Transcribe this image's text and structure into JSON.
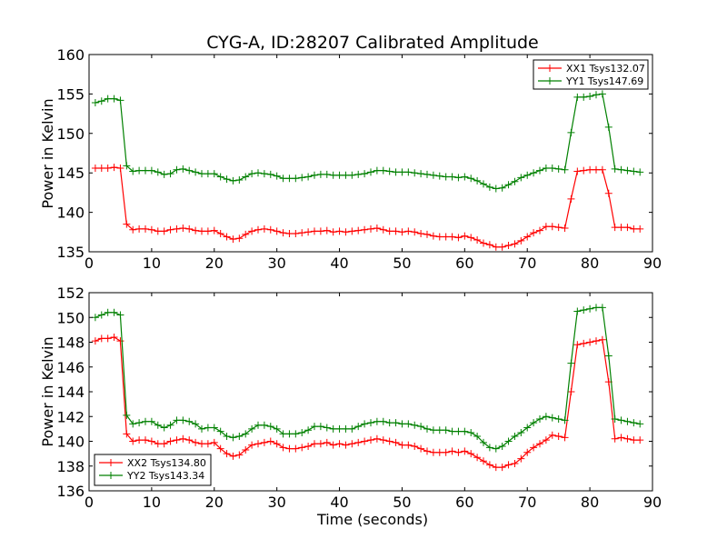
{
  "chart_data": [
    {
      "type": "line",
      "title": "CYG-A, ID:28207 Calibrated Amplitude",
      "xlabel": "",
      "ylabel": "Power in Kelvin",
      "xlim": [
        0,
        90
      ],
      "ylim": [
        135,
        160
      ],
      "xticks": [
        0,
        10,
        20,
        30,
        40,
        50,
        60,
        70,
        80,
        90
      ],
      "yticks": [
        135,
        140,
        145,
        150,
        155,
        160
      ],
      "grid": false,
      "legend_position": "upper-right",
      "x": [
        1,
        2,
        3,
        4,
        5,
        6,
        7,
        8,
        9,
        10,
        11,
        12,
        13,
        14,
        15,
        16,
        17,
        18,
        19,
        20,
        21,
        22,
        23,
        24,
        25,
        26,
        27,
        28,
        29,
        30,
        31,
        32,
        33,
        34,
        35,
        36,
        37,
        38,
        39,
        40,
        41,
        42,
        43,
        44,
        45,
        46,
        47,
        48,
        49,
        50,
        51,
        52,
        53,
        54,
        55,
        56,
        57,
        58,
        59,
        60,
        61,
        62,
        63,
        64,
        65,
        66,
        67,
        68,
        69,
        70,
        71,
        72,
        73,
        74,
        75,
        76,
        77,
        78,
        79,
        80,
        81,
        82,
        83,
        84,
        85,
        86,
        87,
        88
      ],
      "series": [
        {
          "name": "XX1 Tsys132.07",
          "color": "#ff0000",
          "marker": "plus",
          "values": [
            145.6,
            145.6,
            145.6,
            145.7,
            145.6,
            138.5,
            137.8,
            137.9,
            137.9,
            137.8,
            137.6,
            137.6,
            137.8,
            137.9,
            138.0,
            137.9,
            137.7,
            137.6,
            137.6,
            137.7,
            137.3,
            136.9,
            136.6,
            136.7,
            137.2,
            137.6,
            137.8,
            137.9,
            137.8,
            137.6,
            137.4,
            137.3,
            137.3,
            137.4,
            137.5,
            137.6,
            137.6,
            137.7,
            137.5,
            137.6,
            137.5,
            137.6,
            137.7,
            137.8,
            137.9,
            138.0,
            137.8,
            137.6,
            137.6,
            137.5,
            137.6,
            137.5,
            137.3,
            137.2,
            137.0,
            136.9,
            136.9,
            136.9,
            136.8,
            137.0,
            136.8,
            136.5,
            136.1,
            135.9,
            135.6,
            135.6,
            135.8,
            136.0,
            136.4,
            136.9,
            137.4,
            137.7,
            138.2,
            138.2,
            138.1,
            138.0,
            141.7,
            145.2,
            145.3,
            145.4,
            145.4,
            145.4,
            142.4,
            138.1,
            138.1,
            138.1,
            137.9,
            137.9
          ]
        },
        {
          "name": "YY1 Tsys147.69",
          "color": "#008000",
          "marker": "plus",
          "values": [
            153.9,
            154.1,
            154.4,
            154.4,
            154.2,
            145.9,
            145.2,
            145.3,
            145.3,
            145.3,
            145.1,
            144.8,
            144.9,
            145.4,
            145.5,
            145.3,
            145.1,
            144.9,
            144.9,
            144.9,
            144.5,
            144.2,
            144.0,
            144.1,
            144.5,
            144.9,
            145.0,
            144.9,
            144.8,
            144.6,
            144.3,
            144.3,
            144.3,
            144.4,
            144.5,
            144.7,
            144.8,
            144.8,
            144.7,
            144.7,
            144.7,
            144.7,
            144.8,
            144.9,
            145.1,
            145.3,
            145.3,
            145.2,
            145.1,
            145.1,
            145.1,
            145.0,
            144.9,
            144.8,
            144.7,
            144.6,
            144.5,
            144.5,
            144.4,
            144.5,
            144.3,
            144.0,
            143.6,
            143.2,
            143.0,
            143.1,
            143.5,
            143.9,
            144.4,
            144.7,
            145.0,
            145.3,
            145.6,
            145.6,
            145.5,
            145.4,
            150.1,
            154.6,
            154.6,
            154.7,
            154.9,
            155.0,
            150.8,
            145.5,
            145.4,
            145.3,
            145.2,
            145.1
          ]
        }
      ]
    },
    {
      "type": "line",
      "title": "",
      "xlabel": "Time (seconds)",
      "ylabel": "Power in Kelvin",
      "xlim": [
        0,
        90
      ],
      "ylim": [
        136,
        152
      ],
      "xticks": [
        0,
        10,
        20,
        30,
        40,
        50,
        60,
        70,
        80,
        90
      ],
      "yticks": [
        136,
        138,
        140,
        142,
        144,
        146,
        148,
        150,
        152
      ],
      "grid": false,
      "legend_position": "lower-left",
      "x": [
        1,
        2,
        3,
        4,
        5,
        6,
        7,
        8,
        9,
        10,
        11,
        12,
        13,
        14,
        15,
        16,
        17,
        18,
        19,
        20,
        21,
        22,
        23,
        24,
        25,
        26,
        27,
        28,
        29,
        30,
        31,
        32,
        33,
        34,
        35,
        36,
        37,
        38,
        39,
        40,
        41,
        42,
        43,
        44,
        45,
        46,
        47,
        48,
        49,
        50,
        51,
        52,
        53,
        54,
        55,
        56,
        57,
        58,
        59,
        60,
        61,
        62,
        63,
        64,
        65,
        66,
        67,
        68,
        69,
        70,
        71,
        72,
        73,
        74,
        75,
        76,
        77,
        78,
        79,
        80,
        81,
        82,
        83,
        84,
        85,
        86,
        87,
        88
      ],
      "series": [
        {
          "name": "XX2 Tsys134.80",
          "color": "#ff0000",
          "marker": "plus",
          "values": [
            148.1,
            148.3,
            148.3,
            148.4,
            148.1,
            140.6,
            140.0,
            140.1,
            140.1,
            140.0,
            139.8,
            139.8,
            140.0,
            140.1,
            140.2,
            140.1,
            139.9,
            139.8,
            139.8,
            139.9,
            139.4,
            139.0,
            138.8,
            138.9,
            139.3,
            139.7,
            139.8,
            139.9,
            140.0,
            139.8,
            139.5,
            139.4,
            139.4,
            139.5,
            139.6,
            139.8,
            139.8,
            139.9,
            139.7,
            139.8,
            139.7,
            139.8,
            139.9,
            140.0,
            140.1,
            140.2,
            140.1,
            140.0,
            139.9,
            139.7,
            139.7,
            139.6,
            139.4,
            139.2,
            139.1,
            139.1,
            139.1,
            139.2,
            139.1,
            139.2,
            139.0,
            138.7,
            138.4,
            138.1,
            137.9,
            137.9,
            138.1,
            138.2,
            138.6,
            139.1,
            139.5,
            139.8,
            140.1,
            140.5,
            140.4,
            140.3,
            144.0,
            147.8,
            147.9,
            148.0,
            148.1,
            148.2,
            144.8,
            140.2,
            140.3,
            140.2,
            140.1,
            140.1
          ]
        },
        {
          "name": "YY2 Tsys143.34",
          "color": "#008000",
          "marker": "plus",
          "values": [
            150.0,
            150.2,
            150.4,
            150.4,
            150.2,
            142.1,
            141.4,
            141.5,
            141.6,
            141.6,
            141.3,
            141.1,
            141.3,
            141.7,
            141.7,
            141.6,
            141.4,
            141.0,
            141.1,
            141.1,
            140.8,
            140.4,
            140.3,
            140.4,
            140.6,
            141.0,
            141.3,
            141.3,
            141.2,
            141.0,
            140.6,
            140.6,
            140.6,
            140.7,
            140.9,
            141.2,
            141.2,
            141.1,
            141.0,
            141.0,
            141.0,
            141.0,
            141.2,
            141.4,
            141.5,
            141.6,
            141.6,
            141.5,
            141.5,
            141.4,
            141.4,
            141.3,
            141.2,
            141.0,
            140.9,
            140.9,
            140.9,
            140.8,
            140.8,
            140.8,
            140.7,
            140.4,
            139.9,
            139.5,
            139.4,
            139.6,
            140.0,
            140.4,
            140.7,
            141.1,
            141.5,
            141.8,
            142.0,
            141.9,
            141.8,
            141.7,
            146.3,
            150.5,
            150.6,
            150.7,
            150.8,
            150.8,
            146.9,
            141.8,
            141.7,
            141.6,
            141.5,
            141.4
          ]
        }
      ]
    }
  ]
}
